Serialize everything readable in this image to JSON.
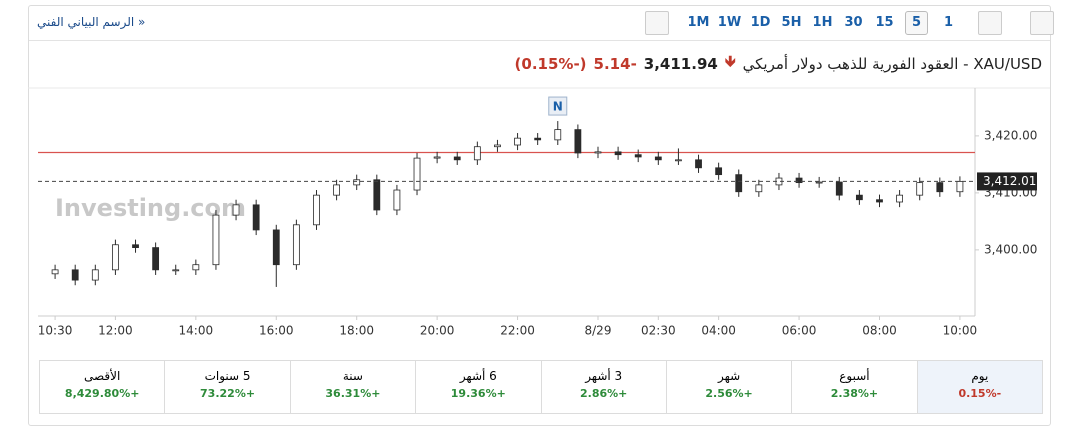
{
  "header": {
    "link": "الرسم البياني الفني »",
    "timeframes": [
      "1M",
      "1W",
      "1D",
      "5H",
      "1H",
      "30",
      "15",
      "5",
      "1"
    ],
    "selected_timeframe": 7
  },
  "quote": {
    "title": "XAU/USD - العقود الفورية للذهب دولار أمريكي",
    "price": "3,411.94",
    "change": "-5.14",
    "change_pct": "(-0.15%)"
  },
  "chart_data": {
    "type": "candlestick",
    "watermark": "Investing.com",
    "marker": {
      "index": 25,
      "label": "N"
    },
    "up_color": "#ffffff",
    "down_color": "#2b2b2b",
    "outline_color": "#2b2b2b",
    "candles": [
      [
        3395.8,
        3397.4,
        3394.9,
        3396.5
      ],
      [
        3396.5,
        3397.4,
        3393.8,
        3394.7
      ],
      [
        3394.7,
        3397.4,
        3393.8,
        3396.5
      ],
      [
        3396.5,
        3401.8,
        3395.6,
        3400.9
      ],
      [
        3400.9,
        3401.8,
        3399.5,
        3400.4
      ],
      [
        3400.4,
        3401.3,
        3395.6,
        3396.5
      ],
      [
        3396.5,
        3397.4,
        3395.6,
        3396.5
      ],
      [
        3396.5,
        3398.3,
        3395.6,
        3397.4
      ],
      [
        3397.4,
        3407.0,
        3396.5,
        3406.1
      ],
      [
        3406.1,
        3408.8,
        3405.2,
        3407.9
      ],
      [
        3407.9,
        3408.8,
        3402.6,
        3403.5
      ],
      [
        3403.5,
        3404.4,
        3393.5,
        3397.4
      ],
      [
        3397.4,
        3405.3,
        3396.5,
        3404.4
      ],
      [
        3404.4,
        3410.5,
        3403.5,
        3409.6
      ],
      [
        3409.6,
        3412.3,
        3408.7,
        3411.4
      ],
      [
        3411.4,
        3413.2,
        3410.5,
        3412.3
      ],
      [
        3412.3,
        3413.2,
        3406.1,
        3407.0
      ],
      [
        3407.0,
        3411.4,
        3406.1,
        3410.5
      ],
      [
        3410.5,
        3417.0,
        3409.6,
        3416.1
      ],
      [
        3416.1,
        3417.2,
        3415.2,
        3416.3
      ],
      [
        3416.3,
        3417.2,
        3414.9,
        3415.8
      ],
      [
        3415.8,
        3419.0,
        3414.9,
        3418.1
      ],
      [
        3418.1,
        3419.3,
        3417.2,
        3418.4
      ],
      [
        3418.4,
        3420.5,
        3417.5,
        3419.6
      ],
      [
        3419.6,
        3420.5,
        3418.4,
        3419.3
      ],
      [
        3419.3,
        3422.6,
        3418.4,
        3421.1
      ],
      [
        3421.1,
        3422.0,
        3416.1,
        3417.0
      ],
      [
        3417.0,
        3418.1,
        3416.1,
        3417.2
      ],
      [
        3417.2,
        3418.1,
        3415.8,
        3416.7
      ],
      [
        3416.7,
        3417.6,
        3415.4,
        3416.3
      ],
      [
        3416.3,
        3417.2,
        3414.9,
        3415.8
      ],
      [
        3415.8,
        3417.8,
        3414.9,
        3415.8
      ],
      [
        3415.8,
        3416.7,
        3413.5,
        3414.4
      ],
      [
        3414.4,
        3415.3,
        3412.3,
        3413.2
      ],
      [
        3413.2,
        3414.1,
        3409.3,
        3410.2
      ],
      [
        3410.2,
        3412.3,
        3409.3,
        3411.4
      ],
      [
        3411.4,
        3413.5,
        3410.5,
        3412.6
      ],
      [
        3412.6,
        3413.5,
        3410.9,
        3411.8
      ],
      [
        3411.8,
        3412.8,
        3410.9,
        3411.9
      ],
      [
        3411.9,
        3412.8,
        3408.7,
        3409.6
      ],
      [
        3409.6,
        3410.5,
        3407.9,
        3408.8
      ],
      [
        3408.8,
        3409.7,
        3407.5,
        3408.4
      ],
      [
        3408.4,
        3410.5,
        3407.5,
        3409.6
      ],
      [
        3409.6,
        3412.7,
        3408.7,
        3411.8
      ],
      [
        3411.8,
        3412.7,
        3409.3,
        3410.2
      ],
      [
        3410.2,
        3412.9,
        3409.3,
        3412.01
      ]
    ],
    "xlim": [
      -0.85,
      45.75
    ],
    "xticks": [
      {
        "value": 0,
        "label": "10:30"
      },
      {
        "value": 3,
        "label": "12:00"
      },
      {
        "value": 7,
        "label": "14:00"
      },
      {
        "value": 11,
        "label": "16:00"
      },
      {
        "value": 15,
        "label": "18:00"
      },
      {
        "value": 19,
        "label": "20:00"
      },
      {
        "value": 23,
        "label": "22:00"
      },
      {
        "value": 27,
        "label": "8/29"
      },
      {
        "value": 30,
        "label": "02:30"
      },
      {
        "value": 33,
        "label": "04:00"
      },
      {
        "value": 37,
        "label": "06:00"
      },
      {
        "value": 41,
        "label": "08:00"
      },
      {
        "value": 45,
        "label": "10:00"
      }
    ],
    "ylim": [
      3388.4,
      3428.4
    ],
    "yticks": [
      {
        "value": 3400,
        "label": "3,400.00"
      },
      {
        "value": 3410,
        "label": "3,410.00"
      },
      {
        "value": 3420,
        "label": "3,420.00"
      }
    ],
    "ref_line": {
      "value": 3417.08,
      "color": "#d9534f"
    },
    "last_price": {
      "value": 3412.01,
      "label": "3,412.01"
    }
  },
  "performance": [
    {
      "label": "يوم",
      "value": "-0.15%"
    },
    {
      "label": "أسبوع",
      "value": "+2.38%"
    },
    {
      "label": "شهر",
      "value": "+2.56%"
    },
    {
      "label": "3 أشهر",
      "value": "+2.86%"
    },
    {
      "label": "6 أشهر",
      "value": "+19.36%"
    },
    {
      "label": "سنة",
      "value": "+36.31%"
    },
    {
      "label": "5 سنوات",
      "value": "+73.22%"
    },
    {
      "label": "الأقصى",
      "value": "+8,429.80%"
    }
  ]
}
